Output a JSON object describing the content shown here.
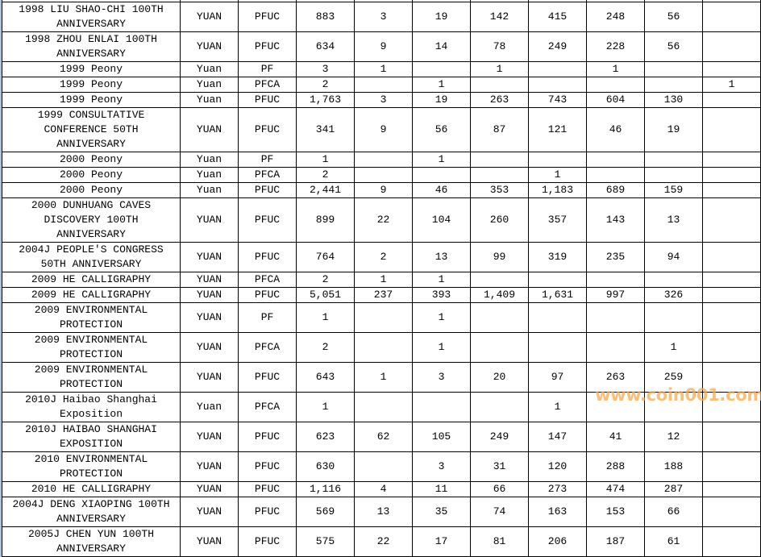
{
  "watermark": "www.coin001.com",
  "table": {
    "rows": [
      {
        "name": [
          "1998 LIU SHAO-CHI 100TH",
          "ANNIVERSARY"
        ],
        "unit": "YUAN",
        "type": "PFUC",
        "total": "883",
        "grades": [
          "3",
          "19",
          "142",
          "415",
          "248",
          "56",
          ""
        ]
      },
      {
        "name": [
          "1998 ZHOU ENLAI 100TH",
          "ANNIVERSARY"
        ],
        "unit": "YUAN",
        "type": "PFUC",
        "total": "634",
        "grades": [
          "9",
          "14",
          "78",
          "249",
          "228",
          "56",
          ""
        ]
      },
      {
        "name": [
          "1999 Peony"
        ],
        "unit": "Yuan",
        "type": "PF",
        "total": "3",
        "grades": [
          "1",
          "",
          "1",
          "",
          "1",
          "",
          ""
        ]
      },
      {
        "name": [
          "1999 Peony"
        ],
        "unit": "Yuan",
        "type": "PFCA",
        "total": "2",
        "grades": [
          "",
          "1",
          "",
          "",
          "",
          "",
          "1"
        ]
      },
      {
        "name": [
          "1999 Peony"
        ],
        "unit": "Yuan",
        "type": "PFUC",
        "total": "1,763",
        "grades": [
          "3",
          "19",
          "263",
          "743",
          "604",
          "130",
          ""
        ]
      },
      {
        "name": [
          "1999 CONSULTATIVE",
          "CONFERENCE 50TH",
          "ANNIVERSARY"
        ],
        "unit": "YUAN",
        "type": "PFUC",
        "total": "341",
        "grades": [
          "9",
          "56",
          "87",
          "121",
          "46",
          "19",
          ""
        ]
      },
      {
        "name": [
          "2000 Peony"
        ],
        "unit": "Yuan",
        "type": "PF",
        "total": "1",
        "grades": [
          "",
          "1",
          "",
          "",
          "",
          "",
          ""
        ]
      },
      {
        "name": [
          "2000 Peony"
        ],
        "unit": "Yuan",
        "type": "PFCA",
        "total": "2",
        "grades": [
          "",
          "",
          "",
          "1",
          "",
          "",
          ""
        ]
      },
      {
        "name": [
          "2000 Peony"
        ],
        "unit": "Yuan",
        "type": "PFUC",
        "total": "2,441",
        "grades": [
          "9",
          "46",
          "353",
          "1,183",
          "689",
          "159",
          ""
        ]
      },
      {
        "name": [
          "2000 DUNHUANG CAVES",
          "DISCOVERY 100TH",
          "ANNIVERSARY"
        ],
        "unit": "YUAN",
        "type": "PFUC",
        "total": "899",
        "grades": [
          "22",
          "104",
          "260",
          "357",
          "143",
          "13",
          ""
        ]
      },
      {
        "name": [
          "2004J PEOPLE'S CONGRESS",
          "50TH ANNIVERSARY"
        ],
        "unit": "YUAN",
        "type": "PFUC",
        "total": "764",
        "grades": [
          "2",
          "13",
          "99",
          "319",
          "235",
          "94",
          ""
        ]
      },
      {
        "name": [
          "2009 HE CALLIGRAPHY"
        ],
        "unit": "YUAN",
        "type": "PFCA",
        "total": "2",
        "grades": [
          "1",
          "1",
          "",
          "",
          "",
          "",
          ""
        ]
      },
      {
        "name": [
          "2009 HE CALLIGRAPHY"
        ],
        "unit": "YUAN",
        "type": "PFUC",
        "total": "5,051",
        "grades": [
          "237",
          "393",
          "1,409",
          "1,631",
          "997",
          "326",
          ""
        ]
      },
      {
        "name": [
          "2009 ENVIRONMENTAL",
          "PROTECTION"
        ],
        "unit": "YUAN",
        "type": "PF",
        "total": "1",
        "grades": [
          "",
          "1",
          "",
          "",
          "",
          "",
          ""
        ]
      },
      {
        "name": [
          "2009 ENVIRONMENTAL",
          "PROTECTION"
        ],
        "unit": "YUAN",
        "type": "PFCA",
        "total": "2",
        "grades": [
          "",
          "1",
          "",
          "",
          "",
          "1",
          ""
        ]
      },
      {
        "name": [
          "2009 ENVIRONMENTAL",
          "PROTECTION"
        ],
        "unit": "YUAN",
        "type": "PFUC",
        "total": "643",
        "grades": [
          "1",
          "3",
          "20",
          "97",
          "263",
          "259",
          ""
        ]
      },
      {
        "name": [
          "2010J Haibao Shanghai",
          "Exposition"
        ],
        "unit": "Yuan",
        "type": "PFCA",
        "total": "1",
        "grades": [
          "",
          "",
          "",
          "1",
          "",
          "",
          ""
        ]
      },
      {
        "name": [
          "2010J HAIBAO SHANGHAI",
          "EXPOSITION"
        ],
        "unit": "YUAN",
        "type": "PFUC",
        "total": "623",
        "grades": [
          "62",
          "105",
          "249",
          "147",
          "41",
          "12",
          ""
        ]
      },
      {
        "name": [
          "2010 ENVIRONMENTAL",
          "PROTECTION"
        ],
        "unit": "YUAN",
        "type": "PFUC",
        "total": "630",
        "grades": [
          "",
          "3",
          "31",
          "120",
          "288",
          "188",
          ""
        ]
      },
      {
        "name": [
          "2010 HE CALLIGRAPHY"
        ],
        "unit": "YUAN",
        "type": "PFUC",
        "total": "1,116",
        "grades": [
          "4",
          "11",
          "66",
          "273",
          "474",
          "287",
          ""
        ]
      },
      {
        "name": [
          "2004J DENG XIAOPING 100TH",
          "ANNIVERSARY"
        ],
        "unit": "YUAN",
        "type": "PFUC",
        "total": "569",
        "grades": [
          "13",
          "35",
          "74",
          "163",
          "153",
          "66",
          ""
        ]
      },
      {
        "name": [
          "2005J CHEN YUN 100TH",
          "ANNIVERSARY"
        ],
        "unit": "YUAN",
        "type": "PFUC",
        "total": "575",
        "grades": [
          "22",
          "17",
          "81",
          "206",
          "187",
          "61",
          ""
        ]
      }
    ]
  }
}
